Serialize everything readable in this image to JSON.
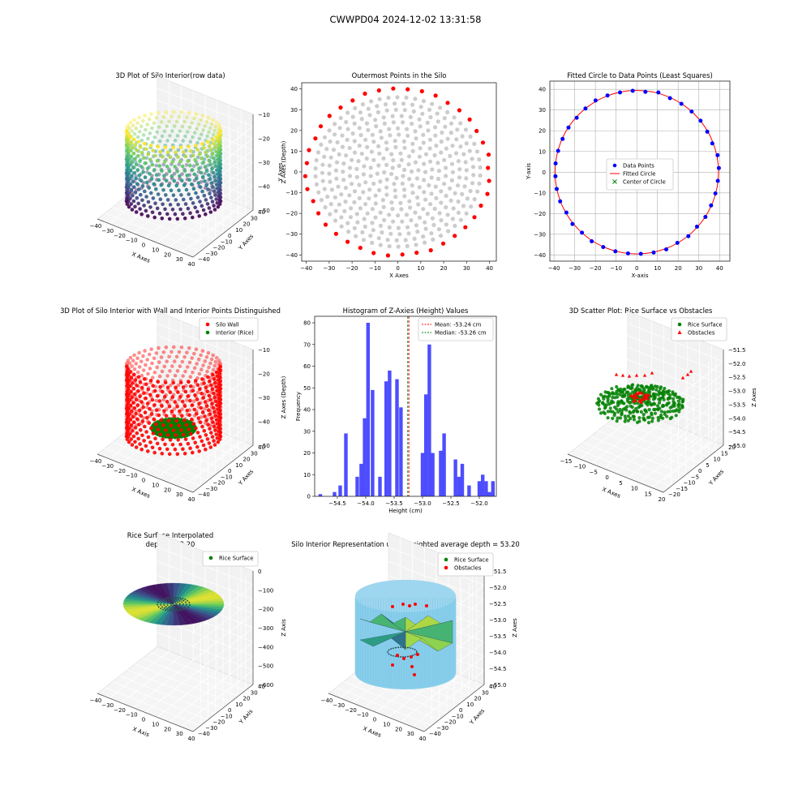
{
  "figure": {
    "suptitle": "CWWPD04 2024-12-02 13:31:58"
  },
  "colors": {
    "wall": "#ff0000",
    "rice": "#008000",
    "outer": "#ff0000",
    "inner": "#cccccc",
    "data_points": "#0000ff",
    "fit": "#ff0000",
    "hist": "#4d4dff",
    "mean": "#ff0000",
    "median": "#008000",
    "cylinder": "#87ceeb",
    "obstacle": "#ff0000"
  },
  "chart_data": [
    {
      "id": "p1",
      "type": "scatter3d",
      "title": "3D Plot of Silo Interior(row data)",
      "xlabel": "X Axes",
      "ylabel": "Y Axes",
      "zlabel": "Z Axes (Depth)",
      "xlim": [
        -40,
        40
      ],
      "ylim": [
        -40,
        40
      ],
      "zlim": [
        -58,
        -10
      ],
      "xticks": [
        "−40",
        "−30",
        "−20",
        "−10",
        "0",
        "10",
        "20",
        "30",
        "40"
      ],
      "yticks": [
        "−40",
        "−30",
        "−20",
        "−10",
        "0",
        "10",
        "20",
        "30",
        "40"
      ],
      "zticks": [
        "−10",
        "−20",
        "−30",
        "−40",
        "−50"
      ],
      "radius": 40,
      "z_top": -12,
      "z_bottom": -55,
      "colormap": "viridis",
      "grid": true
    },
    {
      "id": "p2",
      "type": "scatter",
      "title": "Outermost Points in the Silo",
      "xlabel": "X Axes",
      "ylabel": "Y Axes",
      "xlim": [
        -42,
        43
      ],
      "ylim": [
        -43,
        43
      ],
      "xticks": [
        "−40",
        "−30",
        "−20",
        "−10",
        "0",
        "10",
        "20",
        "30",
        "40"
      ],
      "yticks": [
        "−40",
        "−30",
        "−20",
        "−10",
        "0",
        "10",
        "20",
        "30",
        "40"
      ],
      "outer_radius": 40,
      "outer_count": 40,
      "inner_max_radius": 37,
      "grid": false
    },
    {
      "id": "p3",
      "type": "scatter",
      "title": "Fitted Circle to Data Points (Least Squares)",
      "xlabel": "X-axis",
      "ylabel": "Y-axis",
      "xlim": [
        -42,
        45
      ],
      "ylim": [
        -43,
        44
      ],
      "xticks": [
        "−40",
        "−30",
        "−20",
        "−10",
        "0",
        "10",
        "20",
        "30",
        "40"
      ],
      "yticks": [
        "−40",
        "−30",
        "−20",
        "−10",
        "0",
        "10",
        "20",
        "30",
        "40"
      ],
      "center": [
        0,
        0
      ],
      "radius": 39.5,
      "point_count": 40,
      "legend": [
        "Data Points",
        "Fitted Circle",
        "Center of Circle"
      ],
      "legend_loc": "center",
      "grid": true
    },
    {
      "id": "p4",
      "type": "scatter3d",
      "title": "3D Plot of Silo Interior with Wall and Interior Points Distinguished",
      "xlabel": "X Axes",
      "ylabel": "Y Axes",
      "zlabel": "Z Axes (Depth)",
      "xlim": [
        -40,
        40
      ],
      "ylim": [
        -40,
        40
      ],
      "zlim": [
        -58,
        -10
      ],
      "xticks": [
        "−40",
        "−30",
        "−20",
        "−10",
        "0",
        "10",
        "20",
        "30",
        "40"
      ],
      "yticks": [
        "−40",
        "−30",
        "−20",
        "−10",
        "0",
        "10",
        "20",
        "30",
        "40"
      ],
      "zticks": [
        "−10",
        "−20",
        "−30",
        "−40",
        "−50"
      ],
      "legend": [
        "Silo Wall",
        "Interior (Rice)"
      ],
      "legend_loc": "upper right",
      "grid": true
    },
    {
      "id": "p5",
      "type": "bar",
      "title": "Histogram of Z-Axies (Height) Values",
      "xlabel": "Height (cm)",
      "ylabel": "Frequency",
      "xlim": [
        -54.9,
        -51.7
      ],
      "ylim": [
        0,
        83
      ],
      "xticks": [
        -54.5,
        -54.0,
        -53.5,
        -53.0,
        -52.5,
        -52.0
      ],
      "xtick_labels": [
        "−54.5",
        "−54.0",
        "−53.5",
        "−53.0",
        "−52.5",
        "−52.0"
      ],
      "yticks": [
        0,
        10,
        20,
        30,
        40,
        50,
        60,
        70,
        80
      ],
      "bin_width": 0.0625,
      "bins": [
        {
          "x": -54.8,
          "h": 1
        },
        {
          "x": -54.55,
          "h": 2
        },
        {
          "x": -54.45,
          "h": 5
        },
        {
          "x": -54.35,
          "h": 29
        },
        {
          "x": -54.15,
          "h": 9
        },
        {
          "x": -54.08,
          "h": 15
        },
        {
          "x": -54.02,
          "h": 36
        },
        {
          "x": -53.96,
          "h": 80
        },
        {
          "x": -53.88,
          "h": 49
        },
        {
          "x": -53.75,
          "h": 9
        },
        {
          "x": -53.64,
          "h": 53
        },
        {
          "x": -53.58,
          "h": 58
        },
        {
          "x": -53.45,
          "h": 54
        },
        {
          "x": -53.38,
          "h": 41
        },
        {
          "x": -53.0,
          "h": 20
        },
        {
          "x": -52.94,
          "h": 47
        },
        {
          "x": -52.88,
          "h": 70
        },
        {
          "x": -52.82,
          "h": 20
        },
        {
          "x": -52.68,
          "h": 21
        },
        {
          "x": -52.62,
          "h": 29
        },
        {
          "x": -52.42,
          "h": 17
        },
        {
          "x": -52.36,
          "h": 9
        },
        {
          "x": -52.3,
          "h": 15
        },
        {
          "x": -52.18,
          "h": 5
        },
        {
          "x": -52.0,
          "h": 7
        },
        {
          "x": -51.94,
          "h": 10
        },
        {
          "x": -51.88,
          "h": 7
        },
        {
          "x": -51.82,
          "h": 2
        },
        {
          "x": -51.76,
          "h": 7
        }
      ],
      "mean": -53.24,
      "median": -53.26,
      "legend": [
        "Mean: -53.24 cm",
        "Median: -53.26 cm"
      ],
      "legend_loc": "upper right"
    },
    {
      "id": "p6",
      "type": "scatter3d",
      "title": "3D Scatter Plot: Rice Surface vs Obstacles",
      "xlabel": "X Axes",
      "ylabel": "Y Axes",
      "zlabel": "Z Axes",
      "xlim": [
        -20,
        20
      ],
      "ylim": [
        -20,
        20
      ],
      "zlim": [
        -55,
        -51.5
      ],
      "xticks": [
        "−15",
        "−10",
        "−5",
        "0",
        "5",
        "10",
        "15",
        "20"
      ],
      "yticks": [
        "−20",
        "−15",
        "−10",
        "−5",
        "0",
        "5",
        "10",
        "15",
        "20"
      ],
      "zticks": [
        "−51.5",
        "−52.0",
        "−52.5",
        "−53.0",
        "−53.5",
        "−54.0",
        "−54.5",
        "−55.0"
      ],
      "legend": [
        "Rice Surface",
        "Obstacles"
      ],
      "legend_loc": "upper right",
      "grid": true
    },
    {
      "id": "p7",
      "type": "surface3d",
      "title": "Rice Surface Interpolated",
      "subtitle": "depth = 53.20",
      "xlabel": "X Axis",
      "ylabel": "Y Axis",
      "zlabel": "Z Axis",
      "xlim": [
        -40,
        40
      ],
      "ylim": [
        -40,
        40
      ],
      "zlim": [
        -600,
        0
      ],
      "xticks": [
        "−40",
        "−30",
        "−20",
        "−10",
        "0",
        "10",
        "20",
        "30",
        "40"
      ],
      "yticks": [
        "−40",
        "−30",
        "−20",
        "−10",
        "0",
        "10",
        "20",
        "30",
        "40"
      ],
      "zticks": [
        "0",
        "−100",
        "−200",
        "−300",
        "−400",
        "−500",
        "−600"
      ],
      "legend": [
        "Rice Surface"
      ],
      "legend_loc": "upper right",
      "grid": true
    },
    {
      "id": "p8",
      "type": "surface3d",
      "title": "Silo Interior Representation using weighted average depth = 53.20",
      "xlabel": "X Axes",
      "ylabel": "Y Axes",
      "zlabel": "Z Axes",
      "xlim": [
        -40,
        40
      ],
      "ylim": [
        -40,
        40
      ],
      "zlim": [
        -55,
        -51.5
      ],
      "xticks": [
        "−40",
        "−30",
        "−20",
        "−10",
        "0",
        "10",
        "20",
        "30",
        "40"
      ],
      "yticks": [
        "−40",
        "−30",
        "−20",
        "−10",
        "0",
        "10",
        "20",
        "30",
        "40"
      ],
      "zticks": [
        "−51.5",
        "−52.0",
        "−52.5",
        "−53.0",
        "−53.5",
        "−54.0",
        "−54.5",
        "−55.0"
      ],
      "legend": [
        "Rice Surface",
        "Obstacles"
      ],
      "legend_loc": "upper center",
      "grid": true
    }
  ]
}
